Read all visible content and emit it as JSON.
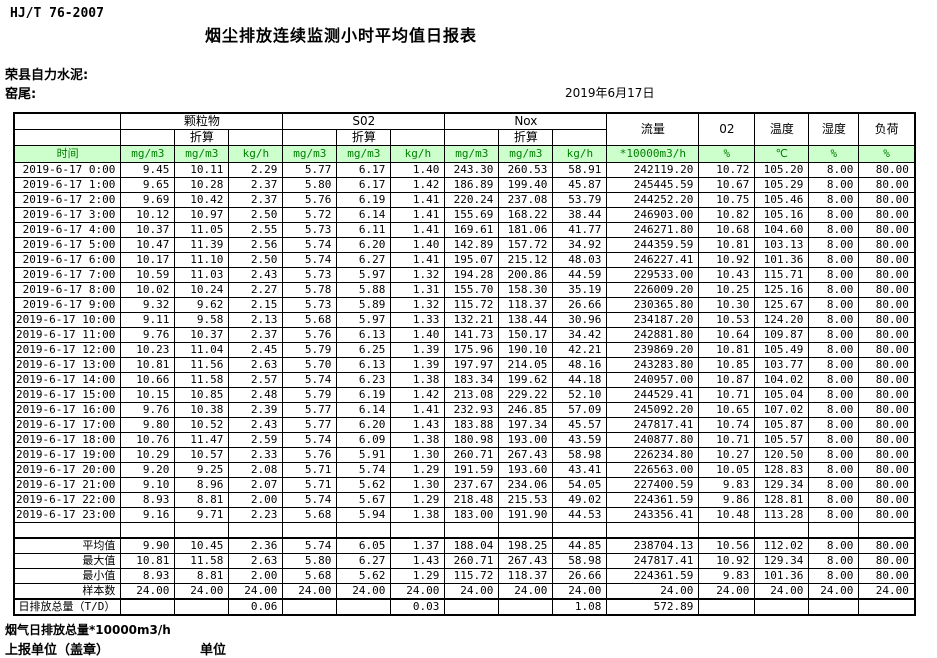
{
  "header": {
    "standard": "HJ/T  76-2007",
    "title": "烟尘排放连续监测小时平均值日报表",
    "company": "荣县自力水泥:",
    "point": "窑尾:",
    "date": "2019年6月17日"
  },
  "table": {
    "time_header": "时间",
    "converted_label": "折算",
    "groups": [
      "颗粒物",
      "S02",
      "Nox"
    ],
    "single_cols": [
      "流量",
      "02",
      "温度",
      "湿度",
      "负荷"
    ],
    "units": [
      "mg/m3",
      "mg/m3",
      "kg/h",
      "mg/m3",
      "mg/m3",
      "kg/h",
      "mg/m3",
      "mg/m3",
      "kg/h",
      "*10000m3/h",
      "%",
      "℃",
      "%",
      "%"
    ],
    "rows": [
      {
        "time": "2019-6-17  0:00",
        "values": [
          "9.45",
          "10.11",
          "2.29",
          "5.77",
          "6.17",
          "1.40",
          "243.30",
          "260.53",
          "58.91",
          "242119.20",
          "10.72",
          "105.20",
          "8.00",
          "80.00"
        ]
      },
      {
        "time": "2019-6-17  1:00",
        "values": [
          "9.65",
          "10.28",
          "2.37",
          "5.80",
          "6.17",
          "1.42",
          "186.89",
          "199.40",
          "45.87",
          "245445.59",
          "10.67",
          "105.29",
          "8.00",
          "80.00"
        ]
      },
      {
        "time": "2019-6-17  2:00",
        "values": [
          "9.69",
          "10.42",
          "2.37",
          "5.76",
          "6.19",
          "1.41",
          "220.24",
          "237.08",
          "53.79",
          "244252.20",
          "10.75",
          "105.46",
          "8.00",
          "80.00"
        ]
      },
      {
        "time": "2019-6-17  3:00",
        "values": [
          "10.12",
          "10.97",
          "2.50",
          "5.72",
          "6.14",
          "1.41",
          "155.69",
          "168.22",
          "38.44",
          "246903.00",
          "10.82",
          "105.16",
          "8.00",
          "80.00"
        ]
      },
      {
        "time": "2019-6-17  4:00",
        "values": [
          "10.37",
          "11.05",
          "2.55",
          "5.73",
          "6.11",
          "1.41",
          "169.61",
          "181.06",
          "41.77",
          "246271.80",
          "10.68",
          "104.60",
          "8.00",
          "80.00"
        ]
      },
      {
        "time": "2019-6-17  5:00",
        "values": [
          "10.47",
          "11.39",
          "2.56",
          "5.74",
          "6.20",
          "1.40",
          "142.89",
          "157.72",
          "34.92",
          "244359.59",
          "10.81",
          "103.13",
          "8.00",
          "80.00"
        ]
      },
      {
        "time": "2019-6-17  6:00",
        "values": [
          "10.17",
          "11.10",
          "2.50",
          "5.74",
          "6.27",
          "1.41",
          "195.07",
          "215.12",
          "48.03",
          "246227.41",
          "10.92",
          "101.36",
          "8.00",
          "80.00"
        ]
      },
      {
        "time": "2019-6-17  7:00",
        "values": [
          "10.59",
          "11.03",
          "2.43",
          "5.73",
          "5.97",
          "1.32",
          "194.28",
          "200.86",
          "44.59",
          "229533.00",
          "10.43",
          "115.71",
          "8.00",
          "80.00"
        ]
      },
      {
        "time": "2019-6-17  8:00",
        "values": [
          "10.02",
          "10.24",
          "2.27",
          "5.78",
          "5.88",
          "1.31",
          "155.70",
          "158.30",
          "35.19",
          "226009.20",
          "10.25",
          "125.16",
          "8.00",
          "80.00"
        ]
      },
      {
        "time": "2019-6-17  9:00",
        "values": [
          "9.32",
          "9.62",
          "2.15",
          "5.73",
          "5.89",
          "1.32",
          "115.72",
          "118.37",
          "26.66",
          "230365.80",
          "10.30",
          "125.67",
          "8.00",
          "80.00"
        ]
      },
      {
        "time": "2019-6-17 10:00",
        "values": [
          "9.11",
          "9.58",
          "2.13",
          "5.68",
          "5.97",
          "1.33",
          "132.21",
          "138.44",
          "30.96",
          "234187.20",
          "10.53",
          "124.20",
          "8.00",
          "80.00"
        ]
      },
      {
        "time": "2019-6-17 11:00",
        "values": [
          "9.76",
          "10.37",
          "2.37",
          "5.76",
          "6.13",
          "1.40",
          "141.73",
          "150.17",
          "34.42",
          "242881.80",
          "10.64",
          "109.87",
          "8.00",
          "80.00"
        ]
      },
      {
        "time": "2019-6-17 12:00",
        "values": [
          "10.23",
          "11.04",
          "2.45",
          "5.79",
          "6.25",
          "1.39",
          "175.96",
          "190.10",
          "42.21",
          "239869.20",
          "10.81",
          "105.49",
          "8.00",
          "80.00"
        ]
      },
      {
        "time": "2019-6-17 13:00",
        "values": [
          "10.81",
          "11.56",
          "2.63",
          "5.70",
          "6.13",
          "1.39",
          "197.97",
          "214.05",
          "48.16",
          "243283.80",
          "10.85",
          "103.77",
          "8.00",
          "80.00"
        ]
      },
      {
        "time": "2019-6-17 14:00",
        "values": [
          "10.66",
          "11.58",
          "2.57",
          "5.74",
          "6.23",
          "1.38",
          "183.34",
          "199.62",
          "44.18",
          "240957.00",
          "10.87",
          "104.02",
          "8.00",
          "80.00"
        ]
      },
      {
        "time": "2019-6-17 15:00",
        "values": [
          "10.15",
          "10.85",
          "2.48",
          "5.79",
          "6.19",
          "1.42",
          "213.08",
          "229.22",
          "52.10",
          "244529.41",
          "10.71",
          "105.04",
          "8.00",
          "80.00"
        ]
      },
      {
        "time": "2019-6-17 16:00",
        "values": [
          "9.76",
          "10.38",
          "2.39",
          "5.77",
          "6.14",
          "1.41",
          "232.93",
          "246.85",
          "57.09",
          "245092.20",
          "10.65",
          "107.02",
          "8.00",
          "80.00"
        ]
      },
      {
        "time": "2019-6-17 17:00",
        "values": [
          "9.80",
          "10.52",
          "2.43",
          "5.77",
          "6.20",
          "1.43",
          "183.88",
          "197.34",
          "45.57",
          "247817.41",
          "10.74",
          "105.87",
          "8.00",
          "80.00"
        ]
      },
      {
        "time": "2019-6-17 18:00",
        "values": [
          "10.76",
          "11.47",
          "2.59",
          "5.74",
          "6.09",
          "1.38",
          "180.98",
          "193.00",
          "43.59",
          "240877.80",
          "10.71",
          "105.57",
          "8.00",
          "80.00"
        ]
      },
      {
        "time": "2019-6-17 19:00",
        "values": [
          "10.29",
          "10.57",
          "2.33",
          "5.76",
          "5.91",
          "1.30",
          "260.71",
          "267.43",
          "58.98",
          "226234.80",
          "10.27",
          "120.50",
          "8.00",
          "80.00"
        ]
      },
      {
        "time": "2019-6-17 20:00",
        "values": [
          "9.20",
          "9.25",
          "2.08",
          "5.71",
          "5.74",
          "1.29",
          "191.59",
          "193.60",
          "43.41",
          "226563.00",
          "10.05",
          "128.83",
          "8.00",
          "80.00"
        ]
      },
      {
        "time": "2019-6-17 21:00",
        "values": [
          "9.10",
          "8.96",
          "2.07",
          "5.71",
          "5.62",
          "1.30",
          "237.67",
          "234.06",
          "54.05",
          "227400.59",
          "9.83",
          "129.34",
          "8.00",
          "80.00"
        ]
      },
      {
        "time": "2019-6-17 22:00",
        "values": [
          "8.93",
          "8.81",
          "2.00",
          "5.74",
          "5.67",
          "1.29",
          "218.48",
          "215.53",
          "49.02",
          "224361.59",
          "9.86",
          "128.81",
          "8.00",
          "80.00"
        ]
      },
      {
        "time": "2019-6-17 23:00",
        "values": [
          "9.16",
          "9.71",
          "2.23",
          "5.68",
          "5.94",
          "1.38",
          "183.00",
          "191.90",
          "44.53",
          "243356.41",
          "10.48",
          "113.28",
          "8.00",
          "80.00"
        ]
      }
    ],
    "summary_rows": [
      {
        "label": "平均值",
        "values": [
          "9.90",
          "10.45",
          "2.36",
          "5.74",
          "6.05",
          "1.37",
          "188.04",
          "198.25",
          "44.85",
          "238704.13",
          "10.56",
          "112.02",
          "8.00",
          "80.00"
        ]
      },
      {
        "label": "最大值",
        "values": [
          "10.81",
          "11.58",
          "2.63",
          "5.80",
          "6.27",
          "1.43",
          "260.71",
          "267.43",
          "58.98",
          "247817.41",
          "10.92",
          "129.34",
          "8.00",
          "80.00"
        ]
      },
      {
        "label": "最小值",
        "values": [
          "8.93",
          "8.81",
          "2.00",
          "5.68",
          "5.62",
          "1.29",
          "115.72",
          "118.37",
          "26.66",
          "224361.59",
          "9.83",
          "101.36",
          "8.00",
          "80.00"
        ]
      },
      {
        "label": "样本数",
        "values": [
          "24.00",
          "24.00",
          "24.00",
          "24.00",
          "24.00",
          "24.00",
          "24.00",
          "24.00",
          "24.00",
          "24.00",
          "24.00",
          "24.00",
          "24.00",
          "24.00"
        ]
      }
    ],
    "total_row": {
      "label": "日排放总量（T/D）",
      "values": [
        "",
        "",
        "0.06",
        "",
        "",
        "0.03",
        "",
        "",
        "1.08",
        "572.89",
        "",
        "",
        "",
        ""
      ]
    }
  },
  "footer": {
    "note": "烟气日排放总量*10000m3/h",
    "report_unit": "上报单位（盖章）",
    "unit_label": "单位"
  },
  "colors": {
    "unit_row_bg": "#ccffcc",
    "unit_row_text": "#008000",
    "border": "#000000"
  }
}
